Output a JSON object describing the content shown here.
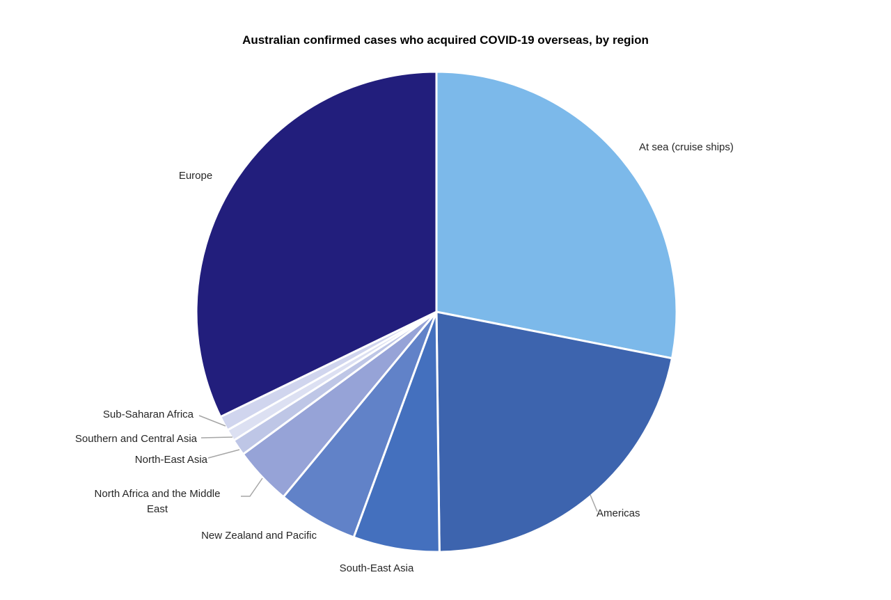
{
  "chart_data": {
    "type": "pie",
    "title": "Australian confirmed cases who acquired COVID-19 overseas, by region",
    "start_angle_deg": 0,
    "direction": "clockwise",
    "units": "percent",
    "slices": [
      {
        "label": "At sea (cruise ships)",
        "value": 28.1,
        "color": "#7CB9EA"
      },
      {
        "label": "Americas",
        "value": 21.7,
        "color": "#3D64AE"
      },
      {
        "label": "South-East Asia",
        "value": 5.8,
        "color": "#4470BE"
      },
      {
        "label": "New Zealand and Pacific",
        "value": 5.4,
        "color": "#6182C8"
      },
      {
        "label": "North Africa and the Middle East",
        "value": 3.9,
        "color": "#96A3D7"
      },
      {
        "label": "North-East Asia",
        "value": 1.1,
        "color": "#BEC6E6"
      },
      {
        "label": "Southern and Central Asia",
        "value": 0.8,
        "color": "#DCE0F2"
      },
      {
        "label": "Sub-Saharan Africa",
        "value": 1.0,
        "color": "#D0D5EE"
      },
      {
        "label": "Europe",
        "value": 32.2,
        "color": "#221E7C"
      }
    ],
    "layout": {
      "center": [
        627,
        448
      ],
      "radius": 345,
      "slice_border_color": "#FFFFFF",
      "slice_border_width": 3,
      "leader_line_color": "#A6A6A6",
      "leader_lines": [
        {
          "slice": 1,
          "points": [
            [
              848,
              711
            ],
            [
              858,
              735
            ]
          ]
        },
        {
          "slice": 4,
          "points": [
            [
              346,
              713
            ],
            [
              359,
              713
            ],
            [
              377,
              687
            ]
          ]
        },
        {
          "slice": 5,
          "points": [
            [
              299,
              658
            ],
            [
              344,
              646
            ]
          ]
        },
        {
          "slice": 6,
          "points": [
            [
              289,
              629
            ],
            [
              334,
              628
            ]
          ]
        },
        {
          "slice": 7,
          "points": [
            [
              286,
              597
            ],
            [
              324,
              612
            ]
          ]
        }
      ],
      "legend": "none",
      "data_labels": "category names outside slices"
    }
  }
}
